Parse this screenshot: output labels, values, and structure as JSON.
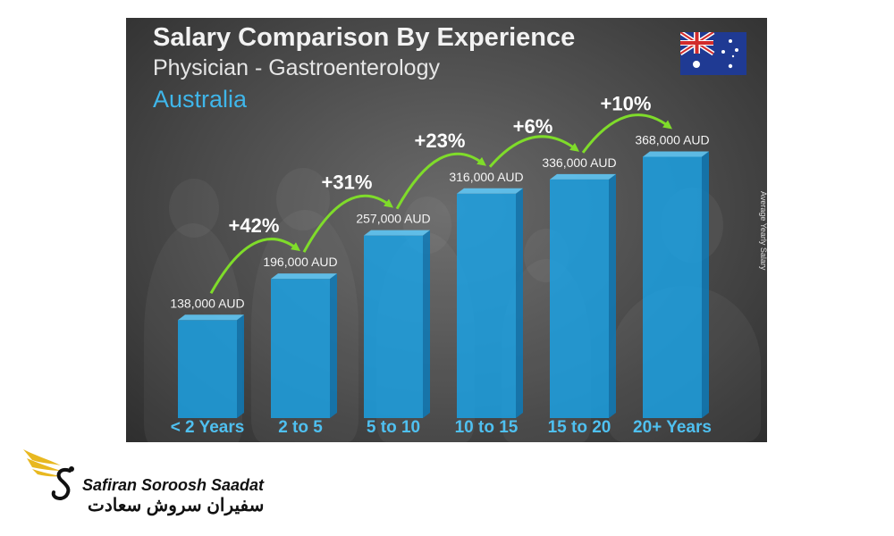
{
  "chart_data": {
    "type": "bar",
    "title": "Salary Comparison By Experience",
    "subtitle": "Physician - Gastroenterology",
    "country": "Australia",
    "ylabel": "Average Yearly Salary",
    "unit": "AUD",
    "categories": [
      "< 2 Years",
      "2 to 5",
      "5 to 10",
      "10 to 15",
      "15 to 20",
      "20+ Years"
    ],
    "values": [
      138000,
      196000,
      257000,
      316000,
      336000,
      368000
    ],
    "value_labels": [
      "138,000 AUD",
      "196,000 AUD",
      "257,000 AUD",
      "316,000 AUD",
      "336,000 AUD",
      "368,000 AUD"
    ],
    "changes": [
      "+42%",
      "+31%",
      "+23%",
      "+6%",
      "+10%"
    ],
    "ylim": [
      0,
      400000
    ],
    "grid": false,
    "colors": {
      "bar": "#1aa3e8",
      "category": "#4fc0f0",
      "title": "#f2f2f2",
      "country": "#3fb6ea",
      "arrow": "#7fdc2a"
    }
  },
  "flag_icon": "australia-flag-icon",
  "brand": {
    "name_en": "Safiran Soroosh Saadat",
    "name_fa": "سفیران سروش سعادت",
    "logo_icon": "winged-s-logo-icon",
    "colors": {
      "gold": "#e8b820",
      "ink": "#111111"
    }
  }
}
